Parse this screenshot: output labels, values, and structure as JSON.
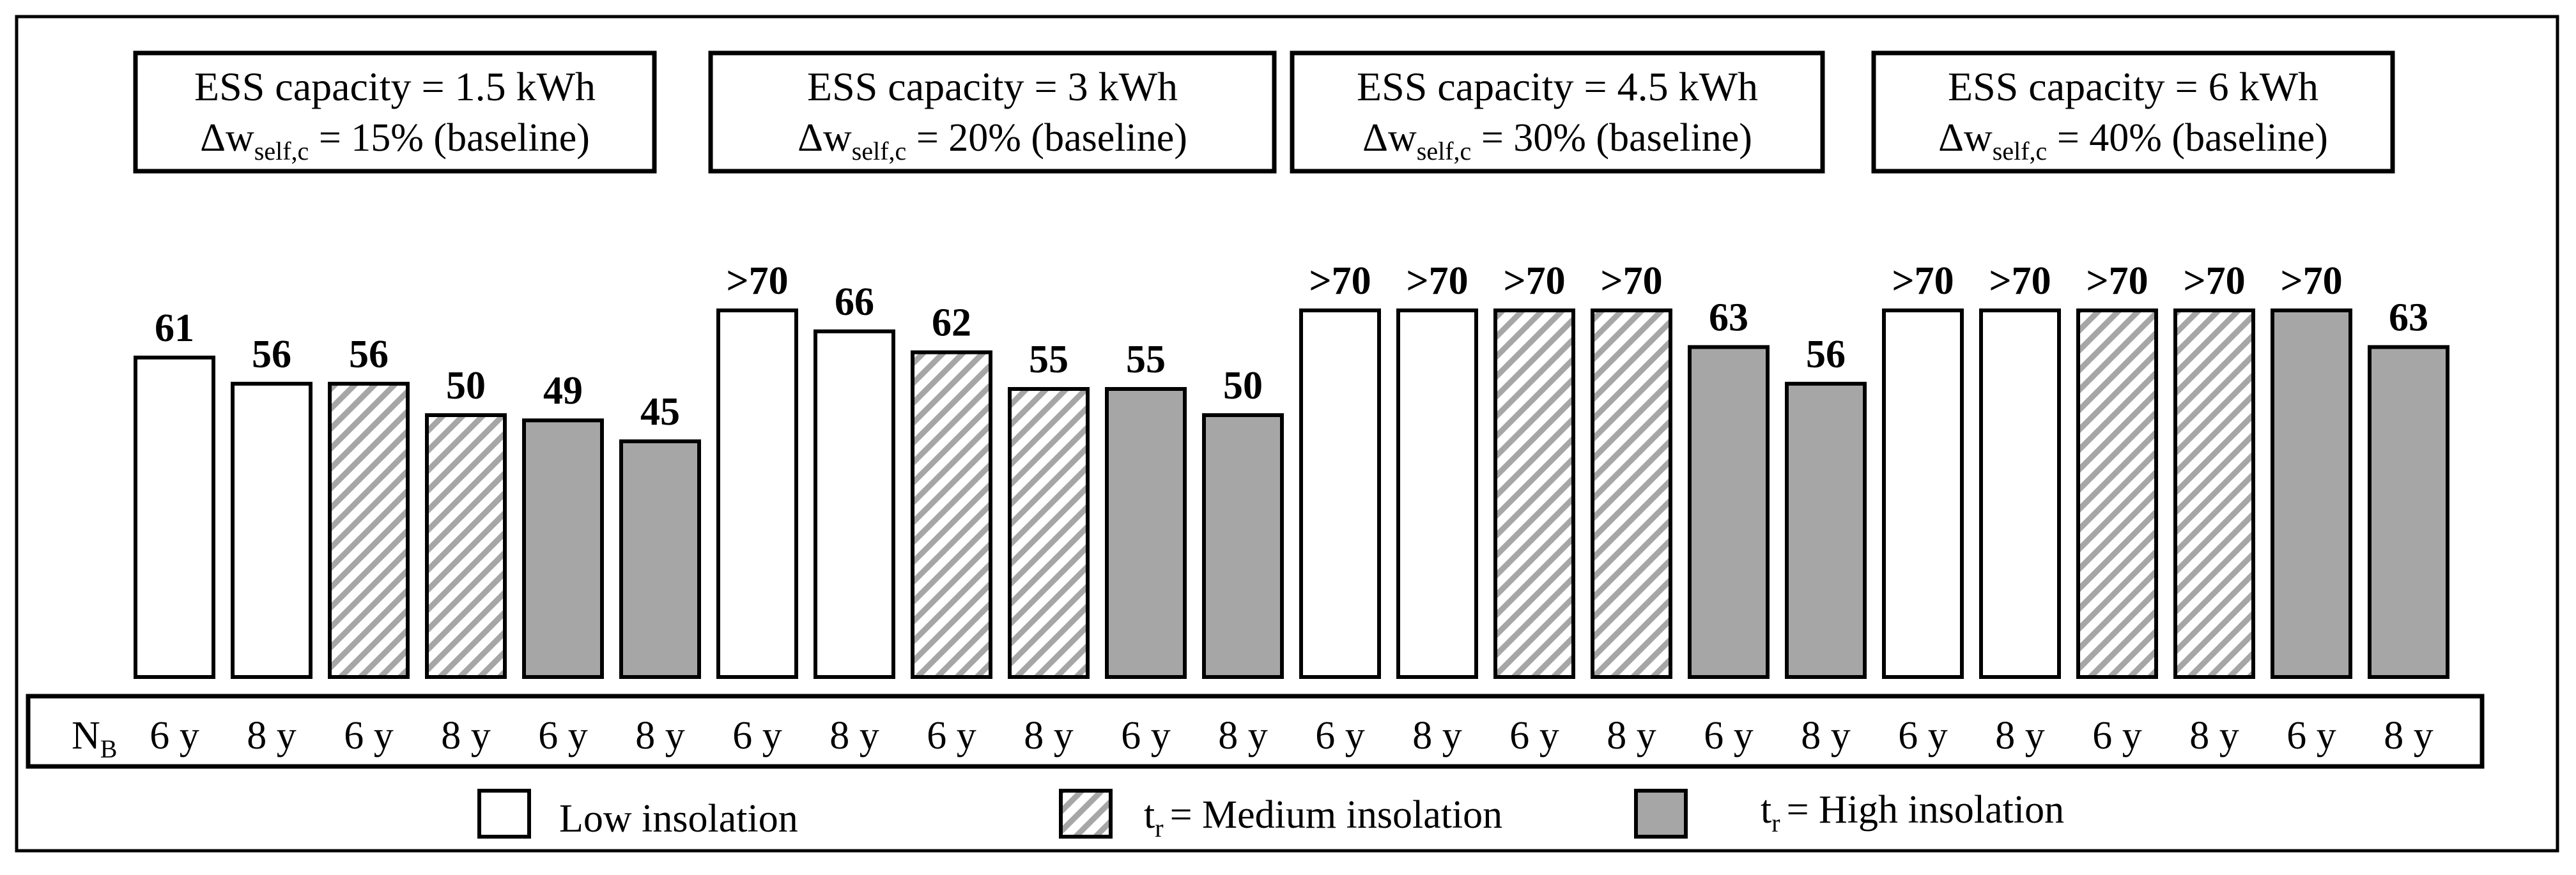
{
  "chart_data": {
    "type": "bar",
    "title": "",
    "xlabel": "",
    "ylabel": "",
    "ylim": [
      0,
      70
    ],
    "grid": false,
    "legend_placement": "bottom",
    "groups": [
      {
        "title": "ESS capacity = 1.5 kWh",
        "sub_prefix": "Δw",
        "sub_subscript": "self,c",
        "sub_suffix": " = 15% (baseline)",
        "bars": [
          {
            "tick": "6 y",
            "value": 61,
            "label": "61",
            "insolation": "low"
          },
          {
            "tick": "8 y",
            "value": 56,
            "label": "56",
            "insolation": "low"
          },
          {
            "tick": "6 y",
            "value": 56,
            "label": "56",
            "insolation": "medium"
          },
          {
            "tick": "8 y",
            "value": 50,
            "label": "50",
            "insolation": "medium"
          },
          {
            "tick": "6 y",
            "value": 49,
            "label": "49",
            "insolation": "high"
          },
          {
            "tick": "8 y",
            "value": 45,
            "label": "45",
            "insolation": "high"
          }
        ]
      },
      {
        "title": "ESS capacity = 3 kWh",
        "sub_prefix": "Δw",
        "sub_subscript": "self,c",
        "sub_suffix": " = 20% (baseline)",
        "bars": [
          {
            "tick": "6 y",
            "value": 70,
            "label": ">70",
            "insolation": "low"
          },
          {
            "tick": "8 y",
            "value": 66,
            "label": "66",
            "insolation": "low"
          },
          {
            "tick": "6 y",
            "value": 62,
            "label": "62",
            "insolation": "medium"
          },
          {
            "tick": "8 y",
            "value": 55,
            "label": "55",
            "insolation": "medium"
          },
          {
            "tick": "6 y",
            "value": 55,
            "label": "55",
            "insolation": "high"
          },
          {
            "tick": "8 y",
            "value": 50,
            "label": "50",
            "insolation": "high"
          }
        ]
      },
      {
        "title": "ESS capacity = 4.5 kWh",
        "sub_prefix": "Δw",
        "sub_subscript": "self,c",
        "sub_suffix": " = 30% (baseline)",
        "bars": [
          {
            "tick": "6 y",
            "value": 70,
            "label": ">70",
            "insolation": "low"
          },
          {
            "tick": "8 y",
            "value": 70,
            "label": ">70",
            "insolation": "low"
          },
          {
            "tick": "6 y",
            "value": 70,
            "label": ">70",
            "insolation": "medium"
          },
          {
            "tick": "8 y",
            "value": 70,
            "label": ">70",
            "insolation": "medium"
          },
          {
            "tick": "6 y",
            "value": 63,
            "label": "63",
            "insolation": "high"
          },
          {
            "tick": "8 y",
            "value": 56,
            "label": "56",
            "insolation": "high"
          }
        ]
      },
      {
        "title": "ESS capacity = 6 kWh",
        "sub_prefix": "Δw",
        "sub_subscript": "self,c",
        "sub_suffix": " = 40% (baseline)",
        "bars": [
          {
            "tick": "6 y",
            "value": 70,
            "label": ">70",
            "insolation": "low"
          },
          {
            "tick": "8 y",
            "value": 70,
            "label": ">70",
            "insolation": "low"
          },
          {
            "tick": "6 y",
            "value": 70,
            "label": ">70",
            "insolation": "medium"
          },
          {
            "tick": "8 y",
            "value": 70,
            "label": ">70",
            "insolation": "medium"
          },
          {
            "tick": "6 y",
            "value": 70,
            "label": ">70",
            "insolation": "high"
          },
          {
            "tick": "8 y",
            "value": 63,
            "label": "63",
            "insolation": "high"
          }
        ]
      }
    ],
    "x_axis_label": {
      "main": "N",
      "subscript": "B"
    },
    "legend": [
      {
        "key": "low",
        "prefix": "",
        "prefix_subscript": "",
        "text": "Low insolation"
      },
      {
        "key": "medium",
        "prefix": "t",
        "prefix_subscript": "r",
        "text": "= Medium insolation"
      },
      {
        "key": "high",
        "prefix": "t",
        "prefix_subscript": "r",
        "text": "= High insolation"
      }
    ],
    "colors": {
      "low": "#ffffff",
      "medium_stripe": "#a6a6a6",
      "high": "#a6a6a6",
      "stroke": "#000000"
    }
  }
}
